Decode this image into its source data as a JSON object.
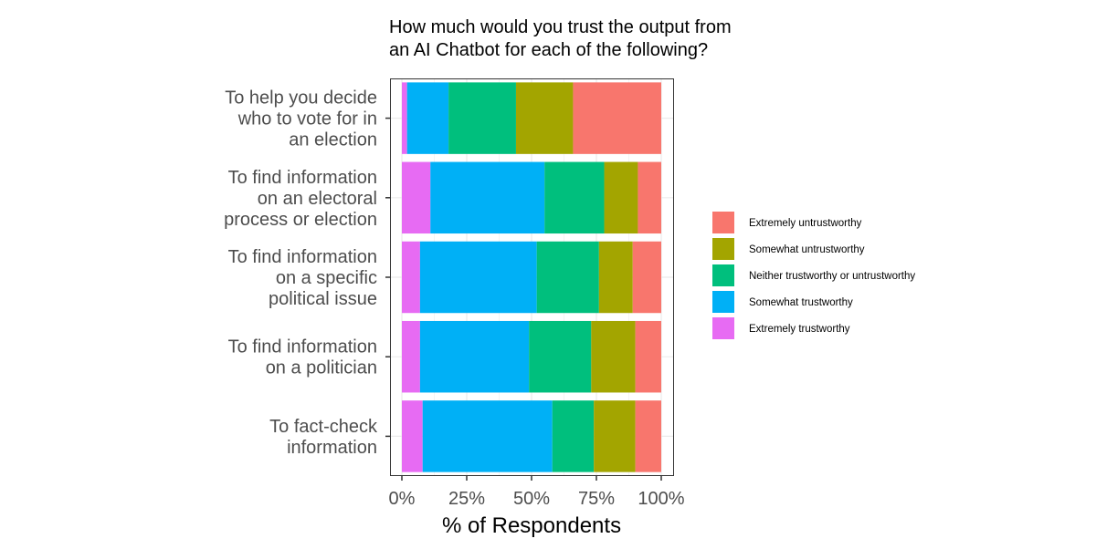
{
  "chart_data": {
    "type": "bar",
    "orientation": "horizontal",
    "stacked": true,
    "title": "How much would you trust the output from an AI Chatbot for each of the following?",
    "title_lines": [
      "How much would you trust the output from",
      "an AI Chatbot for each of the following?"
    ],
    "xlabel": "% of Respondents",
    "ylabel": "",
    "xlim": [
      0,
      100
    ],
    "xticks": [
      0,
      25,
      50,
      75,
      100
    ],
    "xtick_labels": [
      "0%",
      "25%",
      "50%",
      "75%",
      "100%"
    ],
    "grid": true,
    "legend_position": "right",
    "categories": [
      "To help you decide who to vote for in an election",
      "To find information on an electoral process or election",
      "To find information on a specific political issue",
      "To find information on a politician",
      "To fact-check information"
    ],
    "category_lines": [
      [
        "To help you decide",
        "who to vote for in",
        "an election"
      ],
      [
        "To find information",
        "on an electoral",
        "process or election"
      ],
      [
        "To find information",
        "on a specific",
        "political issue"
      ],
      [
        "To find information",
        "on a politician"
      ],
      [
        "To fact-check",
        "information"
      ]
    ],
    "series": [
      {
        "name": "Extremely trustworthy",
        "color": "#E76BF3",
        "values": [
          2,
          11,
          7,
          7,
          8
        ]
      },
      {
        "name": "Somewhat trustworthy",
        "color": "#00B0F6",
        "values": [
          16,
          44,
          45,
          42,
          50
        ]
      },
      {
        "name": "Neither trustworthy or untrustworthy",
        "color": "#00BF7D",
        "values": [
          26,
          23,
          24,
          24,
          16
        ]
      },
      {
        "name": "Somewhat untrustworthy",
        "color": "#A3A500",
        "values": [
          22,
          13,
          13,
          17,
          16
        ]
      },
      {
        "name": "Extremely untrustworthy",
        "color": "#F8766D",
        "values": [
          34,
          9,
          11,
          10,
          10
        ]
      }
    ],
    "legend_order": [
      "Extremely untrustworthy",
      "Somewhat untrustworthy",
      "Neither trustworthy or untrustworthy",
      "Somewhat trustworthy",
      "Extremely trustworthy"
    ]
  }
}
